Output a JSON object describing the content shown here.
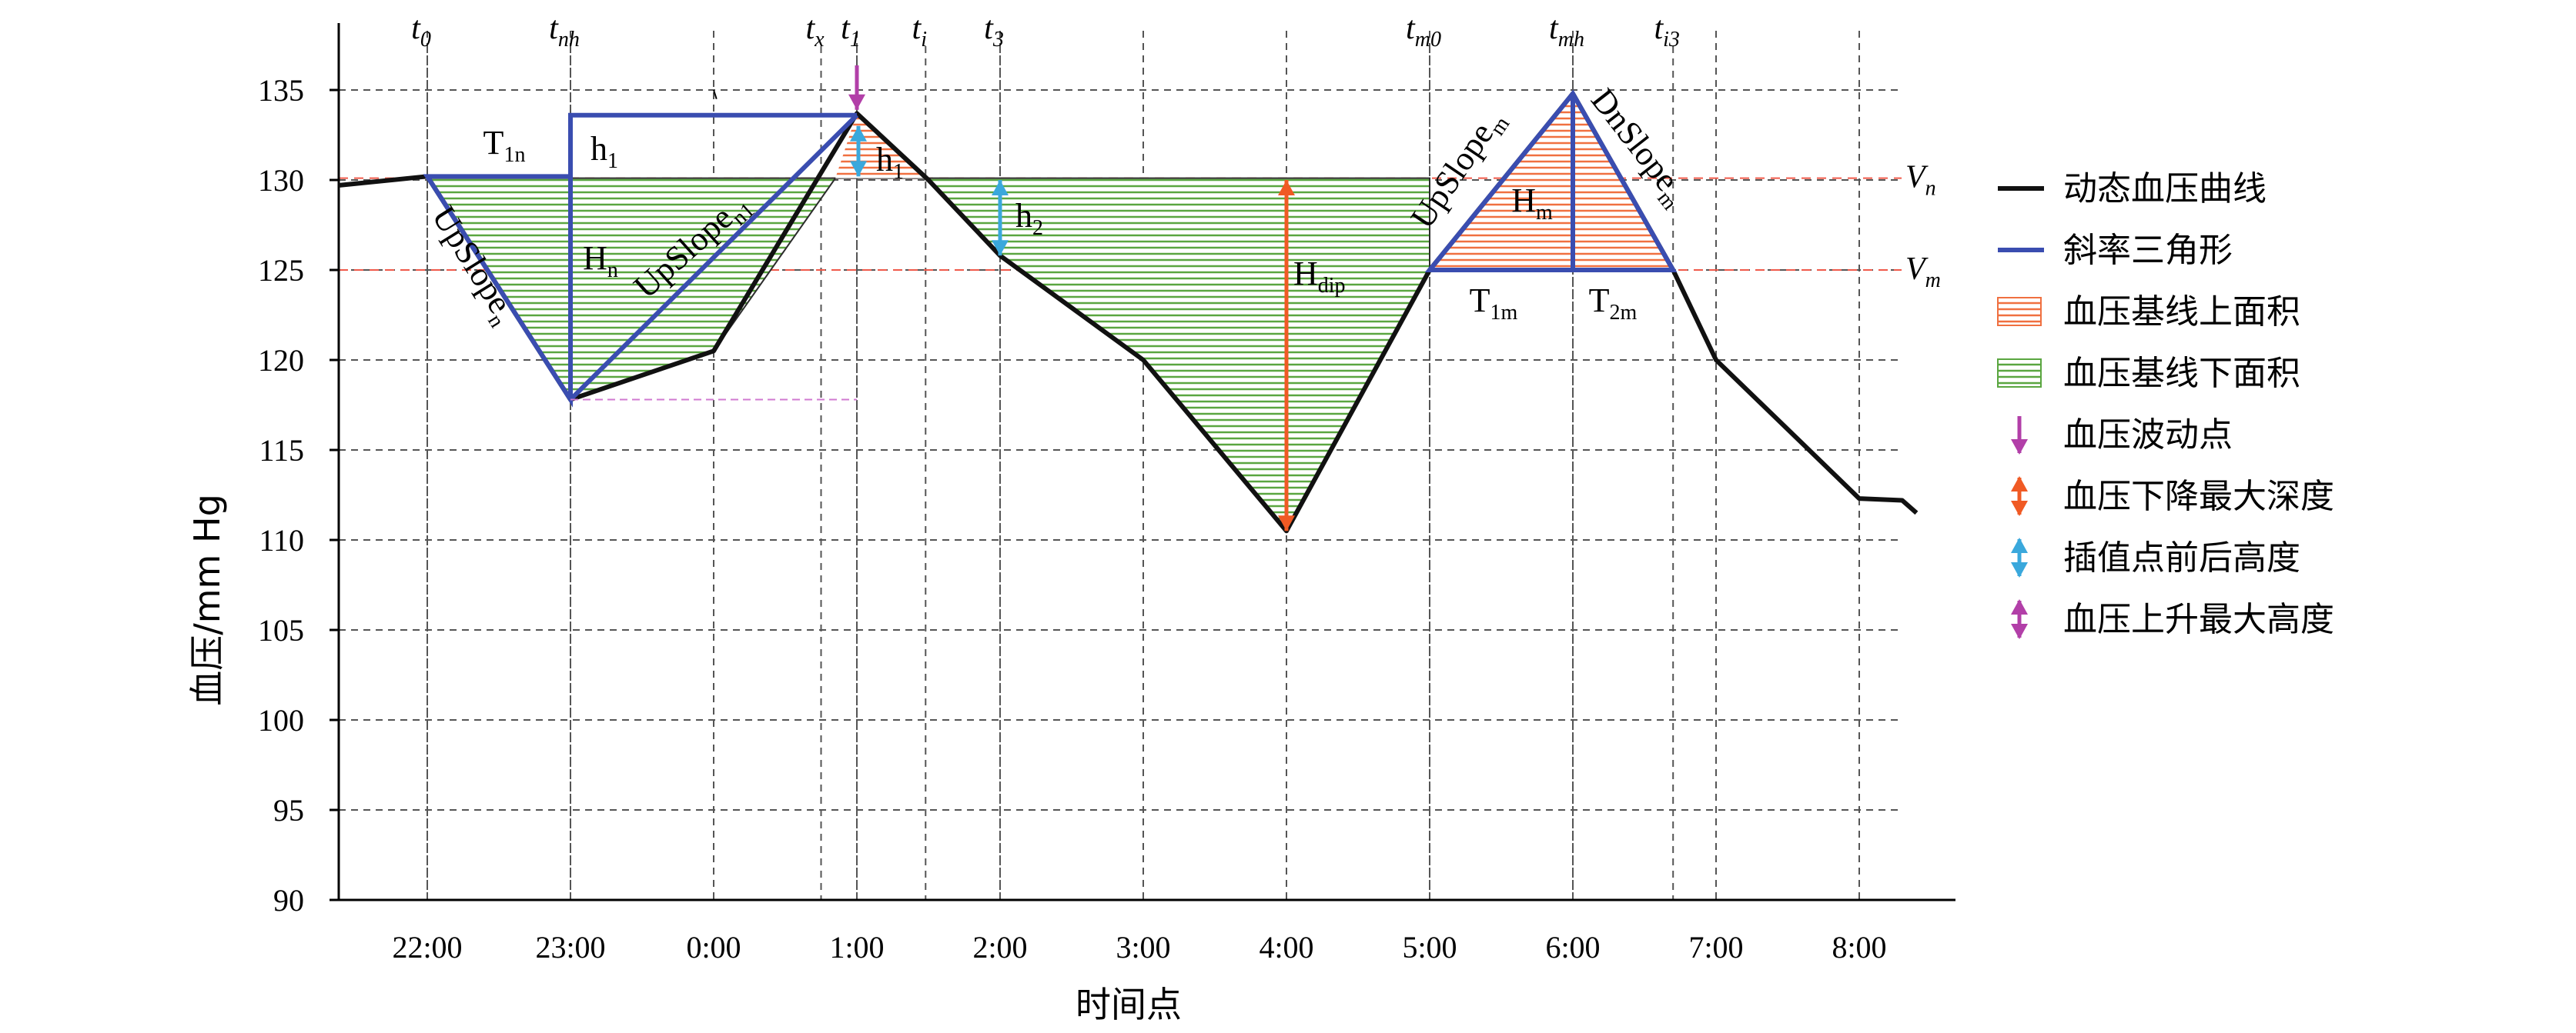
{
  "chart_data": {
    "type": "line",
    "ylabel": "血压/mm Hg",
    "xlabel": "时间点",
    "ylim": [
      90,
      137
    ],
    "yticks": [
      90,
      95,
      100,
      105,
      110,
      115,
      120,
      125,
      130,
      135
    ],
    "xlim": [
      21.45,
      8.35
    ],
    "xticks": [
      {
        "label": "22:00",
        "x": 22
      },
      {
        "label": "23:00",
        "x": 23
      },
      {
        "label": "0:00",
        "x": 24
      },
      {
        "label": "1:00",
        "x": 25
      },
      {
        "label": "2:00",
        "x": 26
      },
      {
        "label": "3:00",
        "x": 27
      },
      {
        "label": "4:00",
        "x": 28
      },
      {
        "label": "5:00",
        "x": 29
      },
      {
        "label": "6:00",
        "x": 30
      },
      {
        "label": "7:00",
        "x": 31
      },
      {
        "label": "8:00",
        "x": 32
      }
    ],
    "grid": true,
    "series": [
      {
        "name": "动态血压曲线",
        "color": "#111111",
        "points": [
          [
            21.38,
            129.7
          ],
          [
            22.0,
            130.2
          ],
          [
            23.0,
            117.8
          ],
          [
            24.0,
            120.5
          ],
          [
            25.0,
            133.7
          ],
          [
            25.5,
            130.0
          ],
          [
            26.0,
            125.8
          ],
          [
            27.0,
            120.0
          ],
          [
            28.0,
            110.5
          ],
          [
            29.0,
            125.0
          ],
          [
            30.0,
            134.8
          ],
          [
            30.7,
            125.0
          ],
          [
            31.0,
            120.0
          ],
          [
            32.0,
            112.3
          ],
          [
            32.3,
            112.2
          ],
          [
            32.4,
            111.5
          ]
        ]
      }
    ],
    "reference_lines": [
      {
        "label": "V",
        "sub": "n",
        "y": 130.1,
        "color": "#f05a4a"
      },
      {
        "label": "V",
        "sub": "m",
        "y": 125.0,
        "color": "#f05a4a"
      }
    ],
    "time_markers": [
      {
        "label": "t",
        "sub": "0",
        "x": 22.0
      },
      {
        "label": "t",
        "sub": "nh",
        "x": 23.0
      },
      {
        "label": "t",
        "sub": "x",
        "x": 24.75
      },
      {
        "label": "t",
        "sub": "1",
        "x": 25.0
      },
      {
        "label": "t",
        "sub": "i",
        "x": 25.48
      },
      {
        "label": "t",
        "sub": "3",
        "x": 26.0
      },
      {
        "label": "t",
        "sub": "m0",
        "x": 29.0
      },
      {
        "label": "t",
        "sub": "mh",
        "x": 30.0
      },
      {
        "label": "t",
        "sub": "i3",
        "x": 30.7
      }
    ],
    "areas": [
      {
        "name": "血压基线下面积",
        "color": "#5aa640",
        "baseline": 130.1,
        "x_range": [
          22.0,
          28.0,
          29.0
        ]
      },
      {
        "name": "血压基线上面积",
        "color": "#f07040",
        "baseline": 125.0,
        "x_range": [
          29.0,
          30.7
        ]
      }
    ],
    "annotations": [
      {
        "text": "T",
        "sub": "1n"
      },
      {
        "text": "h",
        "sub": "1"
      },
      {
        "text": "h",
        "sub": "1"
      },
      {
        "text": "h",
        "sub": "2"
      },
      {
        "text": "H",
        "sub": "n"
      },
      {
        "text": "H",
        "sub": "m"
      },
      {
        "text": "H",
        "sub": "dip"
      },
      {
        "text": "UpSlope",
        "sub": "n"
      },
      {
        "text": "UpSlope",
        "sub": "n1"
      },
      {
        "text": "UpSlope",
        "sub": "m"
      },
      {
        "text": "DnSlope",
        "sub": "m"
      },
      {
        "text": "T",
        "sub": "1m"
      },
      {
        "text": "T",
        "sub": "2m"
      }
    ],
    "legend": [
      {
        "label": "动态血压曲线",
        "kind": "line",
        "color": "#111111"
      },
      {
        "label": "斜率三角形",
        "kind": "line",
        "color": "#3a4db0"
      },
      {
        "label": "血压基线上面积",
        "kind": "hatch",
        "color": "#f07040"
      },
      {
        "label": "血压基线下面积",
        "kind": "hatch",
        "color": "#5aa640"
      },
      {
        "label": "血压波动点",
        "kind": "arrow-down",
        "color": "#b23fa8"
      },
      {
        "label": "血压下降最大深度",
        "kind": "arrow-both",
        "color": "#f05a24"
      },
      {
        "label": "插值点前后高度",
        "kind": "arrow-both",
        "color": "#3aa8dc"
      },
      {
        "label": "血压上升最大高度",
        "kind": "arrow-both",
        "color": "#b23fa8"
      }
    ]
  }
}
